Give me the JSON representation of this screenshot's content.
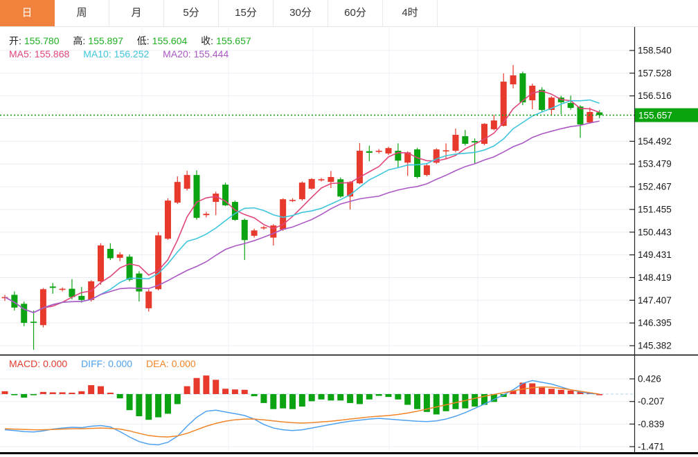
{
  "toolbar": {
    "tabs": [
      {
        "label": "日",
        "active": true
      },
      {
        "label": "周",
        "active": false
      },
      {
        "label": "月",
        "active": false
      },
      {
        "label": "5分",
        "active": false
      },
      {
        "label": "15分",
        "active": false
      },
      {
        "label": "30分",
        "active": false
      },
      {
        "label": "60分",
        "active": false
      },
      {
        "label": "4时",
        "active": false
      }
    ]
  },
  "ohlc_legend": {
    "open_label": "开:",
    "open_value": "155.780",
    "high_label": "高:",
    "high_value": "155.897",
    "low_label": "低:",
    "low_value": "155.604",
    "close_label": "收:",
    "close_value": "155.657"
  },
  "ma_legend": {
    "ma5_label": "MA5:",
    "ma5_value": "155.868",
    "ma10_label": "MA10:",
    "ma10_value": "156.252",
    "ma20_label": "MA20:",
    "ma20_value": "155.444"
  },
  "macd_legend": {
    "macd_label": "MACD:",
    "macd_value": "0.000",
    "diff_label": "DIFF:",
    "diff_value": "0.000",
    "dea_label": "DEA:",
    "dea_value": "0.000"
  },
  "price_axis": {
    "tick_labels": [
      "158.540",
      "157.528",
      "156.516",
      "154.492",
      "153.479",
      "152.467",
      "151.455",
      "150.443",
      "149.431",
      "148.419",
      "147.407",
      "146.395",
      "145.382"
    ],
    "current_price_label": "155.657"
  },
  "macd_axis": {
    "tick_labels": [
      "0.426",
      "-0.207",
      "-0.839",
      "-1.471"
    ]
  },
  "colors": {
    "up": "#E8392D",
    "down": "#0CA312",
    "tab_accent": "#F0823E",
    "ohlc_value": "#1FAF21",
    "ma5": "#E0457B",
    "ma10": "#3EC6DD",
    "ma20": "#AB58C5",
    "diff": "#4DA1F0",
    "dea": "#F08426",
    "current_price_bg": "#09A30E",
    "current_price_line": "#12A112",
    "grid": "#E9EDF3",
    "zero_dash": "#BFDDF2",
    "axis_line": "#222222"
  },
  "chart_data": {
    "type": "candlestick",
    "title": "Daily candlestick chart with MA5/MA10/MA20 overlays and MACD sub-panel",
    "panels": [
      {
        "name": "price",
        "type": "candlestick",
        "ylim": [
          145.06,
          159.65
        ],
        "y_ticks": [
          158.54,
          157.528,
          156.516,
          155.504,
          154.492,
          153.479,
          152.467,
          151.455,
          150.443,
          149.431,
          148.419,
          147.407,
          146.395,
          145.382
        ],
        "current_price": 155.657,
        "ma_periods": [
          5,
          10,
          20
        ],
        "candles": [
          [
            147.5,
            147.65,
            147.38,
            147.55
          ],
          [
            147.65,
            147.8,
            146.95,
            147.08
          ],
          [
            147.25,
            147.35,
            146.25,
            146.4
          ],
          [
            146.45,
            146.95,
            145.2,
            146.4
          ],
          [
            146.3,
            147.95,
            146.2,
            147.9
          ],
          [
            148.02,
            148.18,
            147.7,
            147.96
          ],
          [
            147.88,
            147.98,
            147.8,
            147.92
          ],
          [
            147.92,
            148.35,
            147.45,
            147.55
          ],
          [
            147.6,
            148.0,
            147.3,
            147.42
          ],
          [
            147.42,
            148.3,
            147.35,
            148.25
          ],
          [
            148.25,
            149.95,
            148.1,
            149.85
          ],
          [
            149.7,
            149.95,
            149.2,
            149.28
          ],
          [
            149.3,
            149.55,
            149.15,
            149.45
          ],
          [
            149.35,
            149.45,
            148.25,
            148.32
          ],
          [
            148.6,
            148.7,
            147.35,
            147.8
          ],
          [
            147.05,
            147.9,
            146.9,
            147.8
          ],
          [
            147.9,
            150.45,
            147.85,
            150.3
          ],
          [
            150.15,
            151.95,
            150.1,
            151.85
          ],
          [
            151.76,
            152.93,
            151.7,
            152.68
          ],
          [
            152.38,
            153.18,
            152.3,
            152.99
          ],
          [
            152.99,
            153.2,
            151.0,
            151.08
          ],
          [
            151.2,
            151.35,
            151.1,
            151.26
          ],
          [
            151.79,
            152.25,
            151.2,
            152.16
          ],
          [
            152.56,
            152.65,
            151.6,
            151.64
          ],
          [
            151.79,
            151.85,
            150.95,
            150.99
          ],
          [
            150.99,
            151.05,
            149.2,
            150.09
          ],
          [
            150.28,
            150.6,
            150.2,
            150.52
          ],
          [
            150.62,
            150.72,
            150.55,
            150.66
          ],
          [
            150.2,
            150.8,
            149.85,
            150.74
          ],
          [
            150.56,
            151.95,
            150.5,
            151.91
          ],
          [
            151.85,
            151.95,
            151.78,
            151.88
          ],
          [
            151.91,
            152.7,
            151.85,
            152.65
          ],
          [
            152.38,
            152.85,
            152.33,
            152.81
          ],
          [
            152.76,
            152.86,
            152.7,
            152.8
          ],
          [
            152.68,
            153.17,
            152.41,
            152.9
          ],
          [
            152.8,
            152.88,
            151.98,
            152.03
          ],
          [
            152.03,
            152.72,
            151.45,
            152.68
          ],
          [
            152.62,
            154.41,
            152.58,
            154.07
          ],
          [
            154.05,
            154.3,
            153.6,
            153.98
          ],
          [
            154.03,
            154.15,
            153.95,
            154.07
          ],
          [
            153.95,
            154.25,
            153.88,
            154.19
          ],
          [
            154.07,
            154.4,
            153.3,
            153.63
          ],
          [
            153.54,
            154.05,
            152.95,
            154.0
          ],
          [
            154.13,
            154.2,
            152.84,
            152.9
          ],
          [
            152.99,
            153.48,
            152.93,
            153.42
          ],
          [
            153.54,
            154.18,
            153.48,
            154.13
          ],
          [
            154.05,
            154.4,
            153.7,
            154.09
          ],
          [
            154.07,
            155.06,
            154.0,
            154.78
          ],
          [
            154.72,
            155.0,
            154.3,
            154.38
          ],
          [
            154.5,
            154.62,
            153.5,
            154.44
          ],
          [
            154.38,
            155.3,
            154.32,
            155.27
          ],
          [
            155.03,
            155.67,
            154.98,
            155.42
          ],
          [
            155.18,
            157.52,
            155.15,
            157.15
          ],
          [
            157.03,
            157.89,
            156.85,
            157.43
          ],
          [
            157.52,
            157.6,
            156.1,
            156.23
          ],
          [
            156.32,
            157.06,
            155.92,
            156.97
          ],
          [
            156.79,
            156.9,
            155.8,
            155.89
          ],
          [
            155.89,
            156.5,
            155.64,
            156.44
          ],
          [
            156.44,
            156.52,
            155.7,
            156.23
          ],
          [
            156.2,
            156.53,
            155.9,
            155.98
          ],
          [
            156.04,
            156.1,
            154.65,
            155.24
          ],
          [
            155.33,
            156.0,
            155.28,
            155.8
          ],
          [
            155.78,
            155.88,
            155.52,
            155.657
          ]
        ]
      },
      {
        "name": "macd",
        "type": "bar",
        "ylim": [
          -1.7,
          0.7
        ],
        "y_ticks": [
          0.426,
          -0.207,
          -0.839,
          -1.471
        ],
        "series": [
          {
            "name": "MACD",
            "type": "bar",
            "values": [
              0.08,
              -0.03,
              -0.1,
              -0.02,
              0.06,
              0.05,
              0.05,
              0.04,
              0.08,
              0.25,
              0.22,
              0.04,
              -0.12,
              -0.45,
              -0.62,
              -0.72,
              -0.65,
              -0.55,
              -0.28,
              0.22,
              0.45,
              0.52,
              0.4,
              0.15,
              0.13,
              0.12,
              -0.06,
              -0.25,
              -0.42,
              -0.4,
              -0.42,
              -0.35,
              -0.2,
              -0.15,
              -0.18,
              -0.18,
              -0.25,
              -0.28,
              -0.15,
              -0.05,
              -0.08,
              -0.15,
              -0.3,
              -0.42,
              -0.5,
              -0.57,
              -0.48,
              -0.42,
              -0.4,
              -0.35,
              -0.3,
              -0.22,
              -0.08,
              0.1,
              0.32,
              0.3,
              0.18,
              0.15,
              0.12,
              0.1,
              0.06,
              0.04,
              0.0
            ]
          },
          {
            "name": "DIFF",
            "type": "line",
            "values": [
              -1.0,
              -1.02,
              -1.05,
              -1.06,
              -1.03,
              -0.98,
              -0.95,
              -0.93,
              -0.94,
              -0.9,
              -0.88,
              -0.92,
              -1.05,
              -1.2,
              -1.33,
              -1.4,
              -1.42,
              -1.35,
              -1.18,
              -0.9,
              -0.65,
              -0.48,
              -0.45,
              -0.5,
              -0.55,
              -0.6,
              -0.7,
              -0.85,
              -0.95,
              -1.0,
              -1.02,
              -1.0,
              -0.95,
              -0.9,
              -0.85,
              -0.8,
              -0.76,
              -0.73,
              -0.7,
              -0.68,
              -0.7,
              -0.72,
              -0.74,
              -0.76,
              -0.77,
              -0.75,
              -0.7,
              -0.62,
              -0.52,
              -0.4,
              -0.28,
              -0.15,
              -0.02,
              0.12,
              0.3,
              0.38,
              0.33,
              0.28,
              0.2,
              0.12,
              0.06,
              0.02,
              0.0
            ]
          },
          {
            "name": "DEA",
            "type": "line",
            "values": [
              -0.97,
              -0.98,
              -0.99,
              -1.0,
              -1.0,
              -0.99,
              -0.98,
              -0.97,
              -0.97,
              -0.96,
              -0.95,
              -0.96,
              -0.98,
              -1.03,
              -1.1,
              -1.16,
              -1.19,
              -1.2,
              -1.17,
              -1.1,
              -1.0,
              -0.9,
              -0.82,
              -0.76,
              -0.72,
              -0.7,
              -0.7,
              -0.72,
              -0.75,
              -0.78,
              -0.8,
              -0.81,
              -0.8,
              -0.78,
              -0.76,
              -0.73,
              -0.7,
              -0.67,
              -0.64,
              -0.62,
              -0.6,
              -0.57,
              -0.53,
              -0.48,
              -0.42,
              -0.36,
              -0.3,
              -0.24,
              -0.18,
              -0.12,
              -0.06,
              -0.01,
              0.04,
              0.09,
              0.14,
              0.18,
              0.2,
              0.19,
              0.16,
              0.12,
              0.08,
              0.04,
              0.0
            ]
          }
        ]
      }
    ]
  }
}
